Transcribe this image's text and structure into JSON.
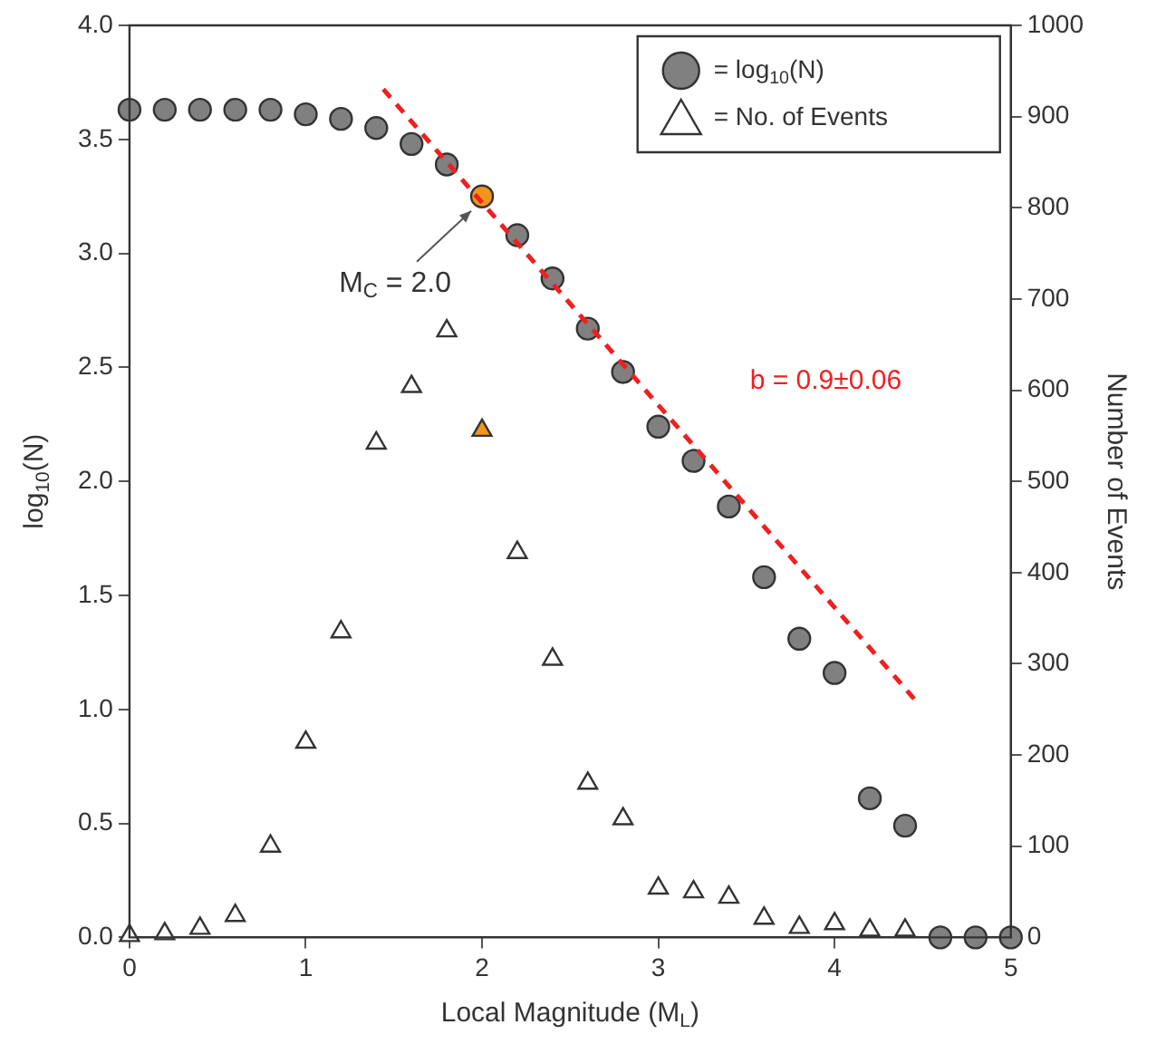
{
  "chart_data": {
    "type": "scatter",
    "xlabel": "Local Magnitude (M$_{L}$)",
    "ylabel": "log$_{10}$(N)",
    "y2label": "Number of Events",
    "x": [
      0,
      0.2,
      0.4,
      0.6,
      0.8,
      1.0,
      1.2,
      1.4,
      1.6,
      1.8,
      2.0,
      2.2,
      2.4,
      2.6,
      2.8,
      3.0,
      3.2,
      3.4,
      3.6,
      3.8,
      4.0,
      4.2,
      4.4,
      4.6,
      4.8,
      5.0
    ],
    "series": [
      {
        "name": "= log$_{10}$(N)",
        "type": "scatter",
        "marker": "circle",
        "color": "#808080",
        "colors": [
          "#808080",
          "#808080",
          "#808080",
          "#808080",
          "#808080",
          "#808080",
          "#808080",
          "#808080",
          "#808080",
          "#808080",
          "#f0961e",
          "#808080",
          "#808080",
          "#808080",
          "#808080",
          "#808080",
          "#808080",
          "#808080",
          "#808080",
          "#808080",
          "#808080",
          "#808080",
          "#808080",
          "#808080",
          "#808080",
          "#808080"
        ],
        "values": [
          3.63,
          3.63,
          3.63,
          3.63,
          3.63,
          3.61,
          3.59,
          3.55,
          3.48,
          3.39,
          3.25,
          3.08,
          2.89,
          2.67,
          2.48,
          2.24,
          2.09,
          1.89,
          1.58,
          1.31,
          1.16,
          0.61,
          0.49,
          0,
          0,
          0
        ]
      },
      {
        "name": "= No. of Events",
        "type": "scatter",
        "marker": "triangle",
        "axis": "y2",
        "color": "#ffffff",
        "colors": [
          "#ffffff",
          "#ffffff",
          "#ffffff",
          "#ffffff",
          "#ffffff",
          "#ffffff",
          "#ffffff",
          "#ffffff",
          "#ffffff",
          "#ffffff",
          "#f0961e",
          "#ffffff",
          "#ffffff",
          "#ffffff",
          "#ffffff",
          "#ffffff",
          "#ffffff",
          "#ffffff",
          "#ffffff",
          "#ffffff",
          "#ffffff",
          "#ffffff",
          "#ffffff",
          "#ffffff",
          "#ffffff",
          "#ffffff"
        ],
        "values": [
          2,
          4,
          10,
          24,
          100,
          214,
          335,
          542,
          604,
          665,
          556,
          422,
          305,
          169,
          130,
          54,
          50,
          44,
          21,
          11,
          15,
          8,
          8,
          null,
          null,
          null
        ]
      },
      {
        "type": "line",
        "marker": "none",
        "line_style": "dashed",
        "color": "#ee2020",
        "x": [
          1.44,
          4.47
        ],
        "values": [
          3.72,
          1.03
        ]
      }
    ],
    "xlim": [
      0,
      5
    ],
    "xticks": [
      0,
      1,
      2,
      3,
      4,
      5
    ],
    "ylim": [
      0,
      4
    ],
    "yticks": [
      {
        "value": 0,
        "label": "0.0"
      },
      0.5,
      {
        "value": 1,
        "label": "1.0"
      },
      1.5,
      {
        "value": 2,
        "label": "2.0"
      },
      2.5,
      {
        "value": 3,
        "label": "3.0"
      },
      3.5,
      {
        "value": 4,
        "label": "4.0"
      }
    ],
    "y2lim": [
      0,
      1000
    ],
    "y2ticks": [
      0,
      100,
      200,
      300,
      400,
      500,
      600,
      700,
      800,
      900,
      1000
    ],
    "annotations": [
      {
        "text": "M$_{C}$ = 2.0",
        "x": 2.0,
        "y": 3.25
      },
      "b = 0.9±0.06"
    ],
    "legend": "top right",
    "grid": false
  }
}
